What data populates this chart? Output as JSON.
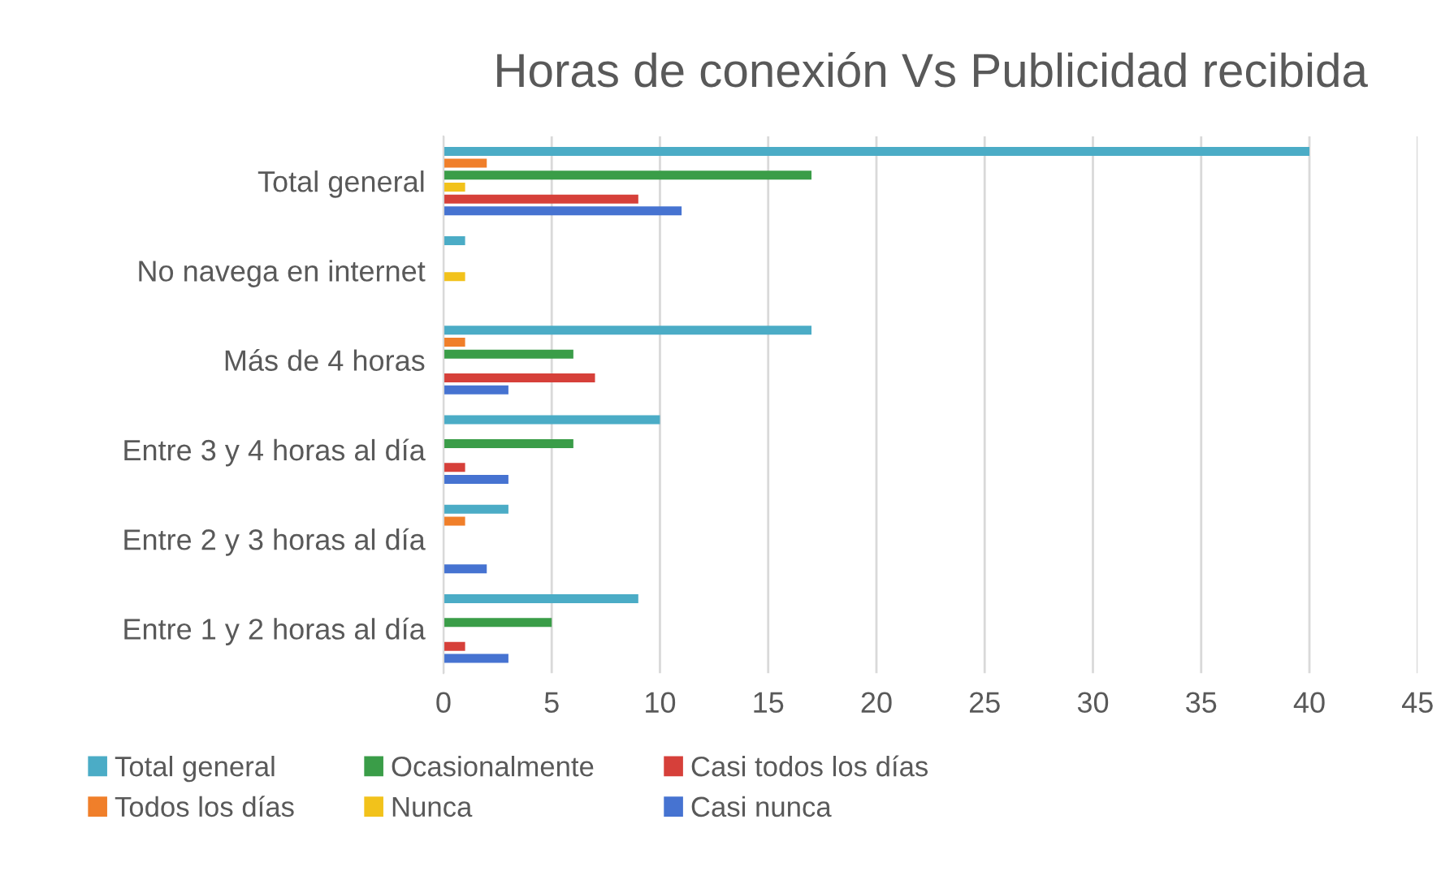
{
  "chart_data": {
    "type": "bar",
    "orientation": "horizontal",
    "title": "Horas de conexión Vs Publicidad recibida",
    "categories": [
      "Total general",
      "No navega en internet",
      "Más de 4 horas",
      "Entre 3 y 4 horas al día",
      "Entre 2 y 3 horas al día",
      "Entre 1 y 2 horas al día"
    ],
    "series": [
      {
        "name": "Total general",
        "color": "#4bacc6",
        "values": [
          40,
          1,
          17,
          10,
          3,
          9
        ]
      },
      {
        "name": "Todos los días",
        "color": "#f07f2a",
        "values": [
          2,
          null,
          1,
          null,
          1,
          null
        ]
      },
      {
        "name": "Ocasionalmente",
        "color": "#3a9d48",
        "values": [
          17,
          null,
          6,
          6,
          null,
          5
        ]
      },
      {
        "name": "Nunca",
        "color": "#f2c21b",
        "values": [
          1,
          1,
          null,
          null,
          null,
          null
        ]
      },
      {
        "name": "Casi todos los días",
        "color": "#d6403a",
        "values": [
          9,
          null,
          7,
          1,
          null,
          1
        ]
      },
      {
        "name": "Casi nunca",
        "color": "#4673d1",
        "values": [
          11,
          null,
          3,
          3,
          2,
          3
        ]
      }
    ],
    "xlim": [
      0,
      45
    ],
    "xticks": [
      0,
      5,
      10,
      15,
      20,
      25,
      30,
      35,
      40,
      45
    ],
    "grid": "x",
    "legend": "bottom"
  }
}
